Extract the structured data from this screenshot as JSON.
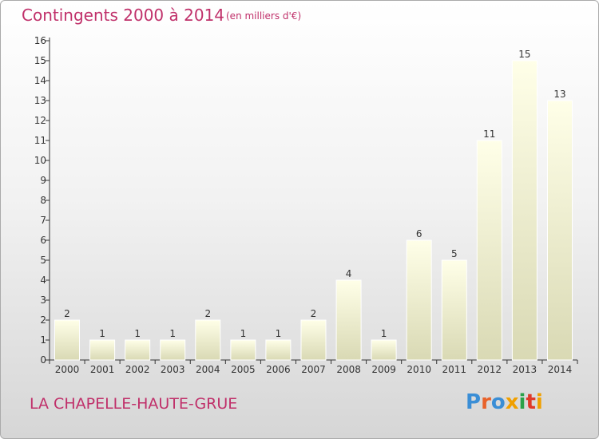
{
  "header": {
    "title": "Contingents 2000 à 2014",
    "unit": "(en milliers d'€)"
  },
  "footer": {
    "commune": "LA CHAPELLE-HAUTE-GRUE",
    "logo_text": "Proxiti",
    "logo_colors": [
      "#3a8ed6",
      "#e8622a",
      "#3a8ed6",
      "#f0a000",
      "#2ba24a",
      "#e03a2a",
      "#f0a000"
    ]
  },
  "chart_data": {
    "type": "bar",
    "categories": [
      "2000",
      "2001",
      "2002",
      "2003",
      "2004",
      "2005",
      "2006",
      "2007",
      "2008",
      "2009",
      "2010",
      "2011",
      "2012",
      "2013",
      "2014"
    ],
    "values": [
      2,
      1,
      1,
      1,
      2,
      1,
      1,
      2,
      4,
      1,
      6,
      5,
      11,
      15,
      13
    ],
    "ylim": [
      0,
      16
    ],
    "yticks": [
      0,
      1,
      2,
      3,
      4,
      5,
      6,
      7,
      8,
      9,
      10,
      11,
      12,
      13,
      14,
      15,
      16
    ],
    "grid": false,
    "bar_color_top": "#ffffe8",
    "bar_color_bottom": "#d9d9b4"
  }
}
